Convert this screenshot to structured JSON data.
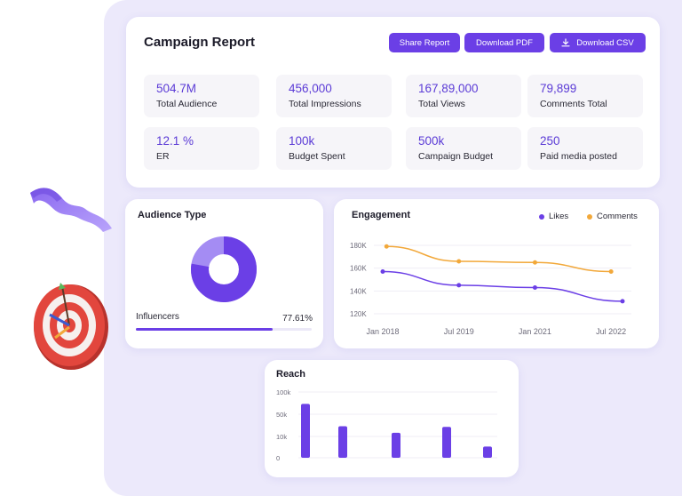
{
  "report": {
    "title": "Campaign Report",
    "buttons": {
      "share": "Share Report",
      "pdf": "Download PDF",
      "csv": "Download CSV"
    },
    "stats": [
      {
        "value": "504.7M",
        "label": "Total Audience"
      },
      {
        "value": "456,000",
        "label": "Total Impressions"
      },
      {
        "value": "167,89,000",
        "label": "Total Views"
      },
      {
        "value": "79,899",
        "label": "Comments Total"
      },
      {
        "value": "12.1 %",
        "label": "ER"
      },
      {
        "value": "100k",
        "label": "Budget Spent"
      },
      {
        "value": "500k",
        "label": "Campaign Budget"
      },
      {
        "value": "250",
        "label": "Paid media posted"
      }
    ]
  },
  "audience": {
    "title": "Audience Type",
    "label": "Influencers",
    "percent_text": "77.61%",
    "percent": 77.61
  },
  "engagement": {
    "title": "Engagement",
    "legend": {
      "likes": "Likes",
      "comments": "Comments"
    }
  },
  "reach": {
    "title": "Reach"
  },
  "colors": {
    "accent": "#6b3fe6",
    "comments": "#f2a83a",
    "backdrop": "#ece9fb"
  },
  "chart_data": [
    {
      "type": "line",
      "x_ticks": [
        "Jan 2018",
        "Jul 2019",
        "Jan 2021",
        "Jul 2022"
      ],
      "y_ticks": [
        "180K",
        "160K",
        "140K",
        "120K"
      ],
      "ylim": [
        120000,
        180000
      ],
      "series": [
        {
          "name": "Likes",
          "x": [
            0,
            1,
            2,
            3.15
          ],
          "values": [
            157000,
            145000,
            143000,
            131000
          ]
        },
        {
          "name": "Comments",
          "x": [
            0.05,
            1,
            2,
            3
          ],
          "values": [
            179000,
            166000,
            165000,
            157000
          ]
        }
      ]
    },
    {
      "type": "bar",
      "y_ticks": [
        "100k",
        "50k",
        "10k",
        "0"
      ],
      "values": [
        82,
        48,
        38,
        47,
        17
      ],
      "ylim": [
        0,
        100
      ]
    }
  ]
}
